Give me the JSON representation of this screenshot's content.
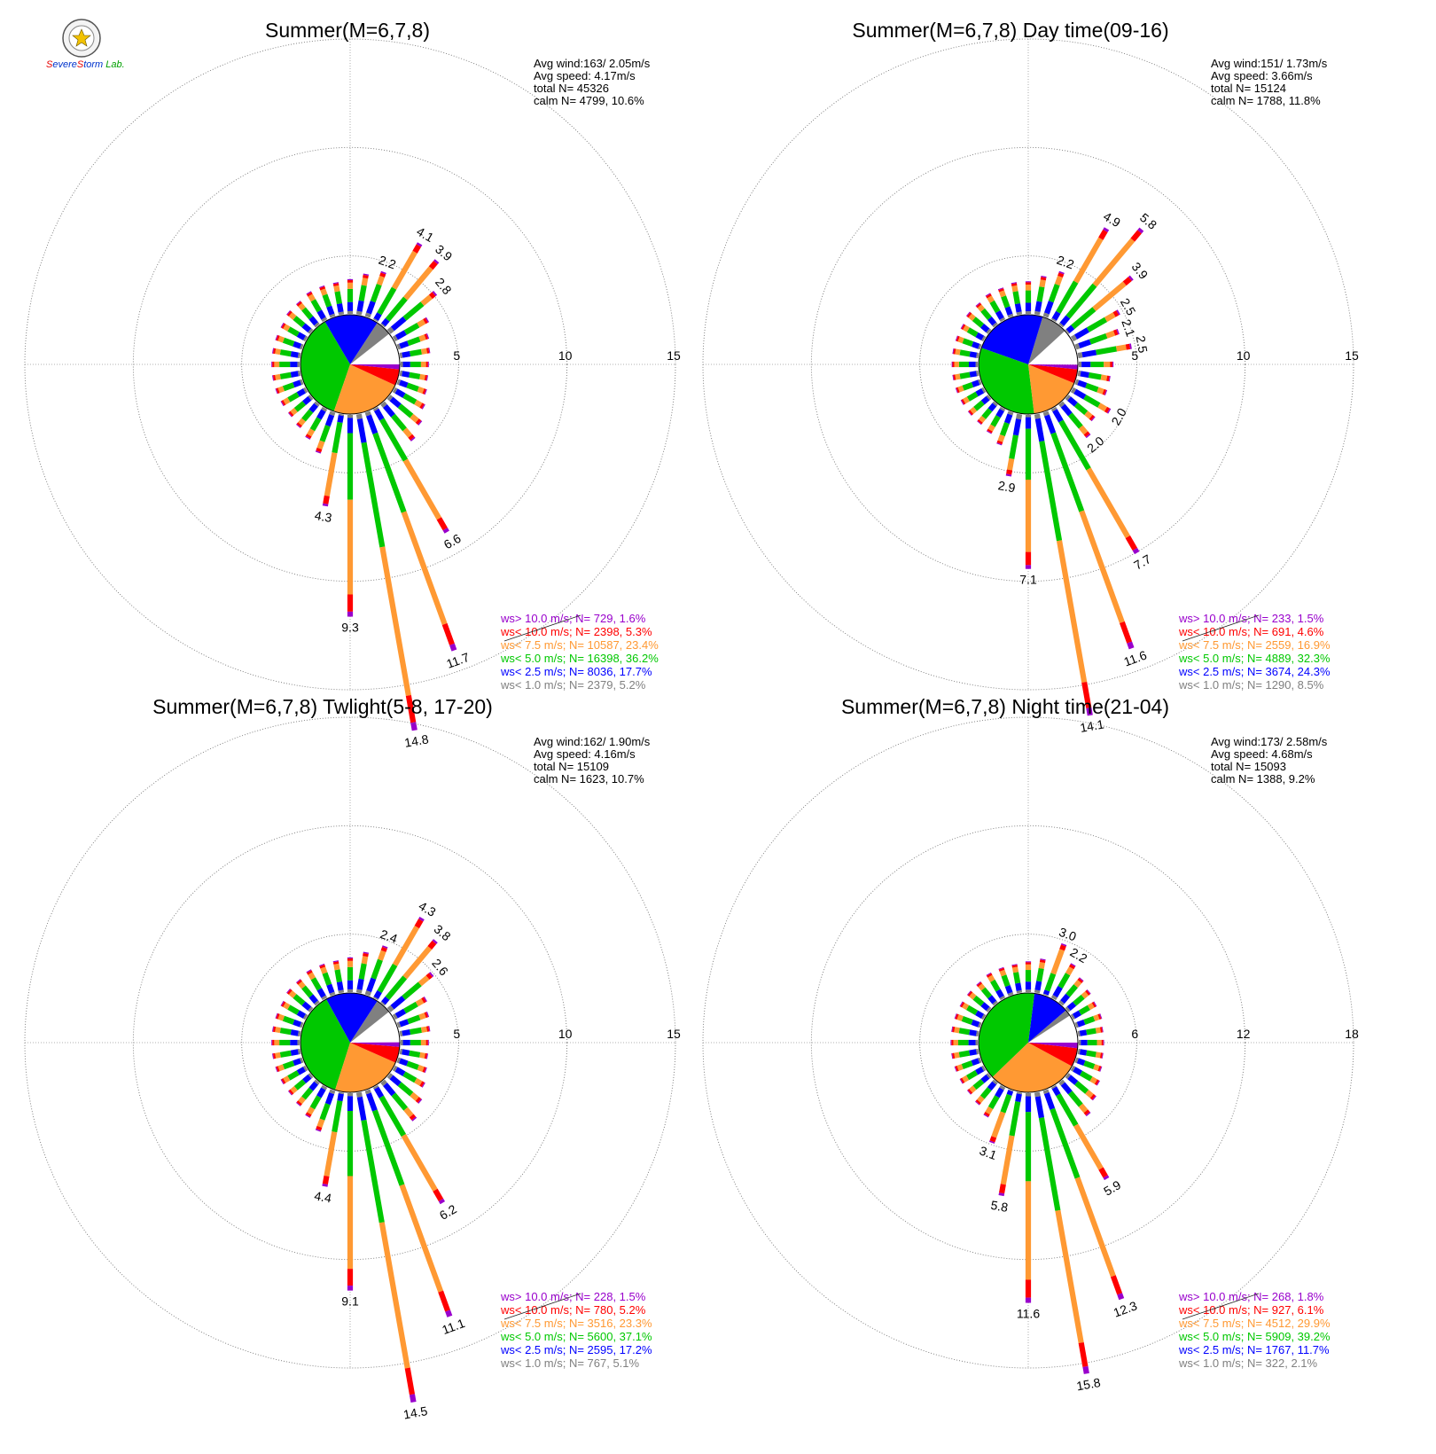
{
  "figure": {
    "logo": {
      "text_parts": [
        "S",
        "evere",
        "S",
        "torm",
        " Lab."
      ],
      "colors": {
        "red": "#e60000",
        "blue": "#0033cc",
        "green": "#00a000"
      }
    }
  },
  "colors": {
    "calm": "#ffffff",
    "ws_lt_1": "#808080",
    "ws_lt_2_5": "#0000ff",
    "ws_lt_5": "#00c800",
    "ws_lt_7_5": "#ff9933",
    "ws_lt_10": "#ff0000",
    "ws_gt_10": "#9900cc"
  },
  "chart_data": [
    {
      "type": "wind-rose",
      "title": "Summer(M=6,7,8)",
      "stats": [
        "Avg wind:163/ 2.05m/s",
        "Avg speed: 4.17m/s",
        "total N=      45326",
        "calm N=   4799,  10.6%"
      ],
      "rings": [
        5,
        10,
        15
      ],
      "ring_labels": [
        "5",
        "10",
        "15"
      ],
      "pie_fractions": {
        "calm": 10.6,
        "lt1": 5.2,
        "lt2_5": 17.7,
        "lt5": 36.2,
        "lt7_5": 23.4,
        "lt10": 5.3,
        "gt10": 1.6
      },
      "directions": [
        {
          "deg": 0,
          "total": 1.6
        },
        {
          "deg": 10,
          "total": 1.9
        },
        {
          "deg": 20,
          "total": 2.2
        },
        {
          "deg": 30,
          "total": 4.1
        },
        {
          "deg": 40,
          "total": 3.9
        },
        {
          "deg": 50,
          "total": 2.8
        },
        {
          "deg": 60,
          "total": 1.8
        },
        {
          "deg": 70,
          "total": 1.5
        },
        {
          "deg": 80,
          "total": 1.4
        },
        {
          "deg": 90,
          "total": 1.3
        },
        {
          "deg": 100,
          "total": 1.3
        },
        {
          "deg": 110,
          "total": 1.4
        },
        {
          "deg": 120,
          "total": 1.6
        },
        {
          "deg": 130,
          "total": 1.9
        },
        {
          "deg": 140,
          "total": 2.2
        },
        {
          "deg": 150,
          "total": 6.6
        },
        {
          "deg": 160,
          "total": 11.7
        },
        {
          "deg": 170,
          "total": 14.8
        },
        {
          "deg": 180,
          "total": 9.3
        },
        {
          "deg": 190,
          "total": 4.3
        },
        {
          "deg": 200,
          "total": 2.0
        },
        {
          "deg": 210,
          "total": 1.6
        },
        {
          "deg": 220,
          "total": 1.4
        },
        {
          "deg": 230,
          "total": 1.3
        },
        {
          "deg": 240,
          "total": 1.3
        },
        {
          "deg": 250,
          "total": 1.3
        },
        {
          "deg": 260,
          "total": 1.3
        },
        {
          "deg": 270,
          "total": 1.3
        },
        {
          "deg": 280,
          "total": 1.3
        },
        {
          "deg": 290,
          "total": 1.3
        },
        {
          "deg": 300,
          "total": 1.3
        },
        {
          "deg": 310,
          "total": 1.4
        },
        {
          "deg": 320,
          "total": 1.4
        },
        {
          "deg": 330,
          "total": 1.5
        },
        {
          "deg": 340,
          "total": 1.5
        },
        {
          "deg": 350,
          "total": 1.5
        }
      ],
      "bar_labels": [
        {
          "deg": 20,
          "text": "2.2"
        },
        {
          "deg": 30,
          "text": "4.1"
        },
        {
          "deg": 40,
          "text": "3.9"
        },
        {
          "deg": 50,
          "text": "2.8"
        },
        {
          "deg": 150,
          "text": "6.6"
        },
        {
          "deg": 160,
          "text": "11.7"
        },
        {
          "deg": 170,
          "text": "14.8"
        },
        {
          "deg": 180,
          "text": "9.3"
        },
        {
          "deg": 190,
          "text": "4.3"
        }
      ],
      "legend": [
        {
          "key": "gt10",
          "text": "ws> 10.0 m/s; N=   729,  1.6%"
        },
        {
          "key": "lt10",
          "text": "ws< 10.0 m/s; N=  2398,  5.3%"
        },
        {
          "key": "lt7_5",
          "text": "ws<  7.5 m/s; N= 10587, 23.4%"
        },
        {
          "key": "lt5",
          "text": "ws<  5.0 m/s; N= 16398, 36.2%"
        },
        {
          "key": "lt2_5",
          "text": "ws<  2.5 m/s; N=  8036, 17.7%"
        },
        {
          "key": "lt1",
          "text": "ws<  1.0 m/s; N=  2379,  5.2%"
        }
      ]
    },
    {
      "type": "wind-rose",
      "title": "Summer(M=6,7,8) Day time(09-16)",
      "stats": [
        "Avg wind:151/ 1.73m/s",
        "Avg speed: 3.66m/s",
        "total N=      15124",
        "calm N=   1788,  11.8%"
      ],
      "rings": [
        5,
        10,
        15
      ],
      "ring_labels": [
        "5",
        "10",
        "15"
      ],
      "pie_fractions": {
        "calm": 11.8,
        "lt1": 8.5,
        "lt2_5": 24.3,
        "lt5": 32.3,
        "lt7_5": 16.9,
        "lt10": 4.6,
        "gt10": 1.5
      },
      "directions": [
        {
          "deg": 0,
          "total": 1.5
        },
        {
          "deg": 10,
          "total": 1.8
        },
        {
          "deg": 20,
          "total": 2.2
        },
        {
          "deg": 30,
          "total": 4.9
        },
        {
          "deg": 40,
          "total": 5.8
        },
        {
          "deg": 50,
          "total": 3.9
        },
        {
          "deg": 60,
          "total": 2.5
        },
        {
          "deg": 70,
          "total": 2.1
        },
        {
          "deg": 80,
          "total": 2.5
        },
        {
          "deg": 90,
          "total": 1.6
        },
        {
          "deg": 100,
          "total": 1.5
        },
        {
          "deg": 110,
          "total": 1.5
        },
        {
          "deg": 120,
          "total": 2.0
        },
        {
          "deg": 130,
          "total": 1.6
        },
        {
          "deg": 140,
          "total": 2.0
        },
        {
          "deg": 150,
          "total": 7.7
        },
        {
          "deg": 160,
          "total": 11.6
        },
        {
          "deg": 170,
          "total": 14.1
        },
        {
          "deg": 180,
          "total": 7.1
        },
        {
          "deg": 190,
          "total": 2.9
        },
        {
          "deg": 200,
          "total": 1.6
        },
        {
          "deg": 210,
          "total": 1.3
        },
        {
          "deg": 220,
          "total": 1.2
        },
        {
          "deg": 230,
          "total": 1.2
        },
        {
          "deg": 240,
          "total": 1.2
        },
        {
          "deg": 250,
          "total": 1.2
        },
        {
          "deg": 260,
          "total": 1.2
        },
        {
          "deg": 270,
          "total": 1.2
        },
        {
          "deg": 280,
          "total": 1.2
        },
        {
          "deg": 290,
          "total": 1.2
        },
        {
          "deg": 300,
          "total": 1.2
        },
        {
          "deg": 310,
          "total": 1.3
        },
        {
          "deg": 320,
          "total": 1.3
        },
        {
          "deg": 330,
          "total": 1.4
        },
        {
          "deg": 340,
          "total": 1.4
        },
        {
          "deg": 350,
          "total": 1.5
        }
      ],
      "bar_labels": [
        {
          "deg": 20,
          "text": "2.2"
        },
        {
          "deg": 30,
          "text": "4.9"
        },
        {
          "deg": 40,
          "text": "5.8"
        },
        {
          "deg": 50,
          "text": "3.9"
        },
        {
          "deg": 60,
          "text": "2.5"
        },
        {
          "deg": 70,
          "text": "2.1"
        },
        {
          "deg": 80,
          "text": "2.5"
        },
        {
          "deg": 120,
          "text": "2.0"
        },
        {
          "deg": 140,
          "text": "2.0"
        },
        {
          "deg": 150,
          "text": "7.7"
        },
        {
          "deg": 160,
          "text": "11.6"
        },
        {
          "deg": 170,
          "text": "14.1"
        },
        {
          "deg": 180,
          "text": "7.1"
        },
        {
          "deg": 190,
          "text": "2.9"
        }
      ],
      "legend": [
        {
          "key": "gt10",
          "text": "ws> 10.0 m/s; N=   233,  1.5%"
        },
        {
          "key": "lt10",
          "text": "ws< 10.0 m/s; N=   691,  4.6%"
        },
        {
          "key": "lt7_5",
          "text": "ws<  7.5 m/s; N=  2559, 16.9%"
        },
        {
          "key": "lt5",
          "text": "ws<  5.0 m/s; N=  4889, 32.3%"
        },
        {
          "key": "lt2_5",
          "text": "ws<  2.5 m/s; N=  3674, 24.3%"
        },
        {
          "key": "lt1",
          "text": "ws<  1.0 m/s; N=  1290,  8.5%"
        }
      ]
    },
    {
      "type": "wind-rose",
      "title": "Summer(M=6,7,8) Twlight(5-8, 17-20)",
      "stats": [
        "Avg wind:162/ 1.90m/s",
        "Avg speed: 4.16m/s",
        "total N=      15109",
        "calm N=   1623,  10.7%"
      ],
      "rings": [
        5,
        10,
        15
      ],
      "ring_labels": [
        "5",
        "10",
        "15"
      ],
      "pie_fractions": {
        "calm": 10.7,
        "lt1": 5.1,
        "lt2_5": 17.2,
        "lt5": 37.1,
        "lt7_5": 23.3,
        "lt10": 5.2,
        "gt10": 1.5
      },
      "directions": [
        {
          "deg": 0,
          "total": 1.6
        },
        {
          "deg": 10,
          "total": 1.9
        },
        {
          "deg": 20,
          "total": 2.4
        },
        {
          "deg": 30,
          "total": 4.3
        },
        {
          "deg": 40,
          "total": 3.8
        },
        {
          "deg": 50,
          "total": 2.6
        },
        {
          "deg": 60,
          "total": 1.7
        },
        {
          "deg": 70,
          "total": 1.5
        },
        {
          "deg": 80,
          "total": 1.4
        },
        {
          "deg": 90,
          "total": 1.3
        },
        {
          "deg": 100,
          "total": 1.3
        },
        {
          "deg": 110,
          "total": 1.4
        },
        {
          "deg": 120,
          "total": 1.6
        },
        {
          "deg": 130,
          "total": 1.9
        },
        {
          "deg": 140,
          "total": 2.3
        },
        {
          "deg": 150,
          "total": 6.2
        },
        {
          "deg": 160,
          "total": 11.1
        },
        {
          "deg": 170,
          "total": 14.5
        },
        {
          "deg": 180,
          "total": 9.1
        },
        {
          "deg": 190,
          "total": 4.4
        },
        {
          "deg": 200,
          "total": 2.0
        },
        {
          "deg": 210,
          "total": 1.6
        },
        {
          "deg": 220,
          "total": 1.4
        },
        {
          "deg": 230,
          "total": 1.3
        },
        {
          "deg": 240,
          "total": 1.3
        },
        {
          "deg": 250,
          "total": 1.3
        },
        {
          "deg": 260,
          "total": 1.3
        },
        {
          "deg": 270,
          "total": 1.3
        },
        {
          "deg": 280,
          "total": 1.3
        },
        {
          "deg": 290,
          "total": 1.3
        },
        {
          "deg": 300,
          "total": 1.3
        },
        {
          "deg": 310,
          "total": 1.4
        },
        {
          "deg": 320,
          "total": 1.4
        },
        {
          "deg": 330,
          "total": 1.5
        },
        {
          "deg": 340,
          "total": 1.5
        },
        {
          "deg": 350,
          "total": 1.5
        }
      ],
      "bar_labels": [
        {
          "deg": 20,
          "text": "2.4"
        },
        {
          "deg": 30,
          "text": "4.3"
        },
        {
          "deg": 40,
          "text": "3.8"
        },
        {
          "deg": 50,
          "text": "2.6"
        },
        {
          "deg": 150,
          "text": "6.2"
        },
        {
          "deg": 160,
          "text": "11.1"
        },
        {
          "deg": 170,
          "text": "14.5"
        },
        {
          "deg": 180,
          "text": "9.1"
        },
        {
          "deg": 190,
          "text": "4.4"
        }
      ],
      "legend": [
        {
          "key": "gt10",
          "text": "ws> 10.0 m/s; N=   228,  1.5%"
        },
        {
          "key": "lt10",
          "text": "ws< 10.0 m/s; N=   780,  5.2%"
        },
        {
          "key": "lt7_5",
          "text": "ws<  7.5 m/s; N=  3516, 23.3%"
        },
        {
          "key": "lt5",
          "text": "ws<  5.0 m/s; N=  5600, 37.1%"
        },
        {
          "key": "lt2_5",
          "text": "ws<  2.5 m/s; N=  2595, 17.2%"
        },
        {
          "key": "lt1",
          "text": "ws<  1.0 m/s; N=   767,  5.1%"
        }
      ]
    },
    {
      "type": "wind-rose",
      "title": "Summer(M=6,7,8) Night time(21-04)",
      "stats": [
        "Avg wind:173/ 2.58m/s",
        "Avg speed: 4.68m/s",
        "total N=      15093",
        "calm N=   1388,   9.2%"
      ],
      "rings": [
        6,
        12,
        18
      ],
      "ring_labels": [
        "6",
        "12",
        "18"
      ],
      "pie_fractions": {
        "calm": 9.2,
        "lt1": 2.1,
        "lt2_5": 11.7,
        "lt5": 39.2,
        "lt7_5": 29.9,
        "lt10": 6.1,
        "gt10": 1.8
      },
      "directions": [
        {
          "deg": 0,
          "total": 1.7
        },
        {
          "deg": 10,
          "total": 1.9
        },
        {
          "deg": 20,
          "total": 3.0
        },
        {
          "deg": 30,
          "total": 2.2
        },
        {
          "deg": 40,
          "total": 1.8
        },
        {
          "deg": 50,
          "total": 1.6
        },
        {
          "deg": 60,
          "total": 1.5
        },
        {
          "deg": 70,
          "total": 1.5
        },
        {
          "deg": 80,
          "total": 1.4
        },
        {
          "deg": 90,
          "total": 1.4
        },
        {
          "deg": 100,
          "total": 1.4
        },
        {
          "deg": 110,
          "total": 1.5
        },
        {
          "deg": 120,
          "total": 1.7
        },
        {
          "deg": 130,
          "total": 2.0
        },
        {
          "deg": 140,
          "total": 2.4
        },
        {
          "deg": 150,
          "total": 5.9
        },
        {
          "deg": 160,
          "total": 12.3
        },
        {
          "deg": 170,
          "total": 15.8
        },
        {
          "deg": 180,
          "total": 11.6
        },
        {
          "deg": 190,
          "total": 5.8
        },
        {
          "deg": 200,
          "total": 3.1
        },
        {
          "deg": 210,
          "total": 1.9
        },
        {
          "deg": 220,
          "total": 1.6
        },
        {
          "deg": 230,
          "total": 1.5
        },
        {
          "deg": 240,
          "total": 1.5
        },
        {
          "deg": 250,
          "total": 1.5
        },
        {
          "deg": 260,
          "total": 1.5
        },
        {
          "deg": 270,
          "total": 1.5
        },
        {
          "deg": 280,
          "total": 1.5
        },
        {
          "deg": 290,
          "total": 1.5
        },
        {
          "deg": 300,
          "total": 1.5
        },
        {
          "deg": 310,
          "total": 1.5
        },
        {
          "deg": 320,
          "total": 1.5
        },
        {
          "deg": 330,
          "total": 1.6
        },
        {
          "deg": 340,
          "total": 1.6
        },
        {
          "deg": 350,
          "total": 1.6
        }
      ],
      "bar_labels": [
        {
          "deg": 20,
          "text": "3.0"
        },
        {
          "deg": 30,
          "text": "2.2"
        },
        {
          "deg": 150,
          "text": "5.9"
        },
        {
          "deg": 160,
          "text": "12.3"
        },
        {
          "deg": 170,
          "text": "15.8"
        },
        {
          "deg": 180,
          "text": "11.6"
        },
        {
          "deg": 190,
          "text": "5.8"
        },
        {
          "deg": 200,
          "text": "3.1"
        }
      ],
      "legend": [
        {
          "key": "gt10",
          "text": "ws> 10.0 m/s; N=   268,  1.8%"
        },
        {
          "key": "lt10",
          "text": "ws< 10.0 m/s; N=   927,  6.1%"
        },
        {
          "key": "lt7_5",
          "text": "ws<  7.5 m/s; N=  4512, 29.9%"
        },
        {
          "key": "lt5",
          "text": "ws<  5.0 m/s; N=  5909, 39.2%"
        },
        {
          "key": "lt2_5",
          "text": "ws<  2.5 m/s; N=  1767, 11.7%"
        },
        {
          "key": "lt1",
          "text": "ws<  1.0 m/s; N=   322,  2.1%"
        }
      ]
    }
  ]
}
